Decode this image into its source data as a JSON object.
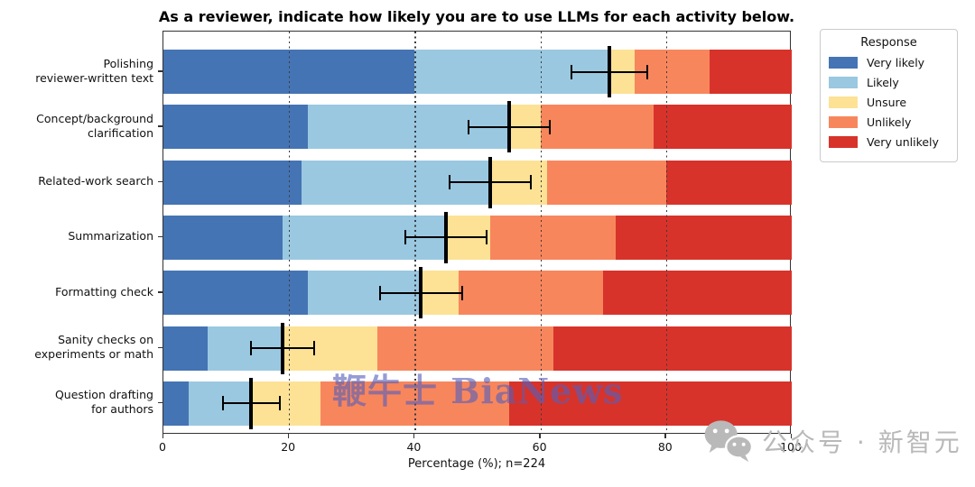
{
  "title": "As a reviewer, indicate how likely you are to use LLMs for each activity below.",
  "legend": {
    "title": "Response",
    "entries": [
      "Very likely",
      "Likely",
      "Unsure",
      "Unlikely",
      "Very unlikely"
    ]
  },
  "watermarks": {
    "center": "鞭牛士 BiaNews",
    "bottom_right": "公众号 · 新智元",
    "bottom_right_icon": "wechat-icon"
  },
  "chart_data": {
    "type": "bar",
    "orientation": "horizontal",
    "stacked": true,
    "title": "As a reviewer, indicate how likely you are to use LLMs for each activity below.",
    "xlabel": "Percentage (%); n=224",
    "ylabel": "",
    "xlim": [
      0,
      100
    ],
    "xticks": [
      0,
      20,
      40,
      60,
      80,
      100
    ],
    "gridlines_x": [
      20,
      40,
      60,
      80
    ],
    "grid_style": "dotted",
    "legend_position": "upper right, outside plot",
    "categories": [
      "Polishing\nreviewer-written text",
      "Concept/background\nclarification",
      "Related-work search",
      "Summarization",
      "Formatting check",
      "Sanity checks on\nexperiments or math",
      "Question drafting\nfor authors"
    ],
    "series": [
      {
        "name": "Very likely",
        "color": "#4574b4",
        "values": [
          40,
          23,
          22,
          19,
          23,
          7,
          4
        ]
      },
      {
        "name": "Likely",
        "color": "#9ac8e1",
        "values": [
          31,
          32,
          30,
          26,
          18,
          12,
          10
        ]
      },
      {
        "name": "Unsure",
        "color": "#fde295",
        "values": [
          4,
          5,
          9,
          7,
          6,
          15,
          11
        ]
      },
      {
        "name": "Unlikely",
        "color": "#f8865d",
        "values": [
          12,
          18,
          19,
          20,
          23,
          28,
          30
        ]
      },
      {
        "name": "Very unlikely",
        "color": "#d7332b",
        "values": [
          13,
          22,
          20,
          28,
          30,
          38,
          45
        ]
      }
    ],
    "error_bars": {
      "description": "mean = cumulative Very likely + Likely, with ~95% CI whiskers",
      "center": [
        71,
        55,
        52,
        45,
        41,
        19,
        14
      ],
      "lo": [
        65,
        48.5,
        45.5,
        38.5,
        34.5,
        14,
        9.5
      ],
      "hi": [
        77,
        61.5,
        58.5,
        51.5,
        47.5,
        24,
        18.5
      ]
    }
  }
}
